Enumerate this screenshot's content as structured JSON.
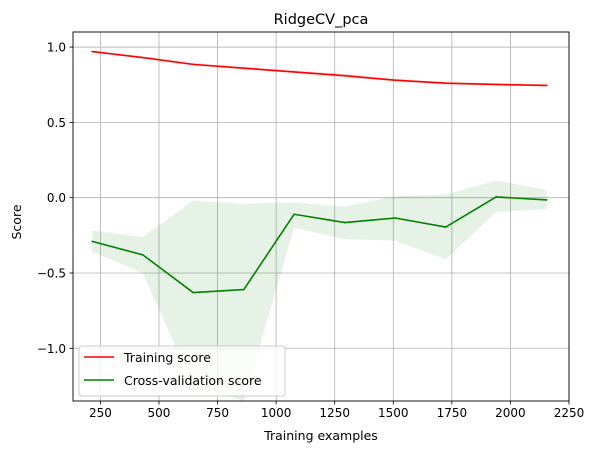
{
  "chart_data": {
    "type": "line",
    "title": "RidgeCV_pca",
    "xlabel": "Training examples",
    "ylabel": "Score",
    "xlim": [
      133,
      2250
    ],
    "ylim": [
      -1.35,
      1.1
    ],
    "xticks": [
      250,
      500,
      750,
      1000,
      1250,
      1500,
      1750,
      2000,
      2250
    ],
    "yticks": [
      -1.0,
      -0.5,
      0.0,
      0.5,
      1.0
    ],
    "ytick_labels": [
      "−1.0",
      "−0.5",
      "0.0",
      "0.5",
      "1.0"
    ],
    "grid": true,
    "legend_position": "lower left",
    "x": [
      215,
      431,
      646,
      862,
      1077,
      1293,
      1508,
      1724,
      1939,
      2155
    ],
    "series": [
      {
        "name": "Training score",
        "color": "#ff0000",
        "values": [
          0.97,
          0.93,
          0.885,
          0.86,
          0.835,
          0.81,
          0.78,
          0.76,
          0.752,
          0.745
        ],
        "band_lower": [
          0.965,
          0.922,
          0.876,
          0.85,
          0.825,
          0.797,
          0.77,
          0.75,
          0.745,
          0.738
        ],
        "band_upper": [
          0.975,
          0.938,
          0.894,
          0.87,
          0.845,
          0.823,
          0.79,
          0.77,
          0.759,
          0.752
        ]
      },
      {
        "name": "Cross-validation score",
        "color": "#008000",
        "values": [
          -0.29,
          -0.38,
          -0.63,
          -0.61,
          -0.11,
          -0.165,
          -0.135,
          -0.195,
          0.005,
          -0.015
        ],
        "band_lower": [
          -0.36,
          -0.5,
          -1.25,
          -1.35,
          -0.2,
          -0.275,
          -0.285,
          -0.41,
          -0.095,
          -0.075
        ],
        "band_upper": [
          -0.22,
          -0.26,
          -0.02,
          -0.04,
          -0.03,
          -0.06,
          0.01,
          0.02,
          0.115,
          0.05
        ]
      }
    ]
  }
}
